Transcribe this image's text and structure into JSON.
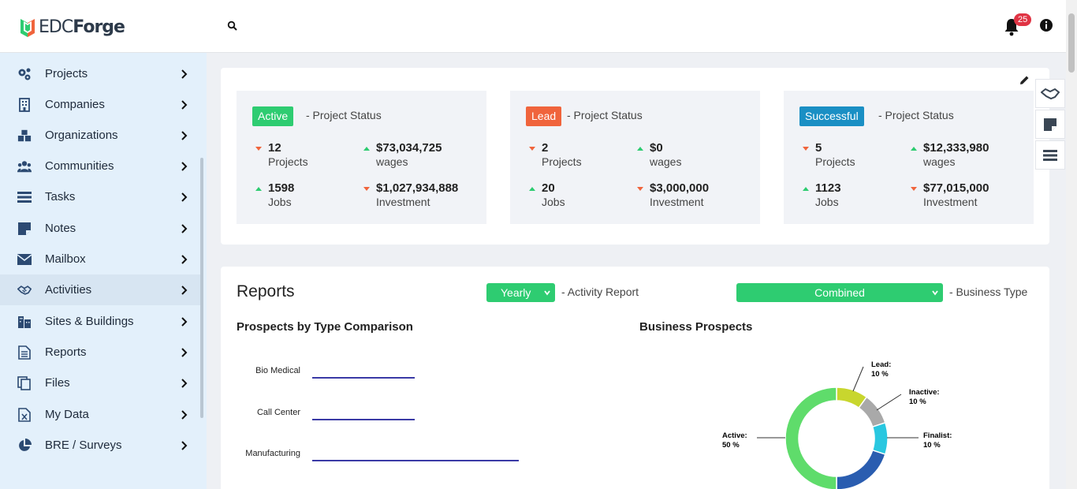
{
  "header": {
    "logo_text_light": "EDC",
    "logo_text_bold": "Forge",
    "notification_count": "25"
  },
  "sidebar": {
    "items": [
      {
        "label": "Projects",
        "icon": "gears-icon"
      },
      {
        "label": "Companies",
        "icon": "building-icon"
      },
      {
        "label": "Organizations",
        "icon": "cubes-icon"
      },
      {
        "label": "Communities",
        "icon": "users-icon"
      },
      {
        "label": "Tasks",
        "icon": "tasks-icon"
      },
      {
        "label": "Notes",
        "icon": "note-icon"
      },
      {
        "label": "Mailbox",
        "icon": "envelope-icon"
      },
      {
        "label": "Activities",
        "icon": "handshake-icon"
      },
      {
        "label": "Sites & Buildings",
        "icon": "city-icon"
      },
      {
        "label": "Reports",
        "icon": "file-text-icon"
      },
      {
        "label": "Files",
        "icon": "files-icon"
      },
      {
        "label": "My Data",
        "icon": "excel-file-icon"
      },
      {
        "label": "BRE / Surveys",
        "icon": "pie-icon"
      }
    ]
  },
  "status_cards": [
    {
      "status": "Active",
      "color": "#2ecc71",
      "suffix": "- Project Status",
      "projects": "12",
      "projects_label": "Projects",
      "projects_trend": "down",
      "wages": "$73,034,725",
      "wages_label": "wages",
      "wages_trend": "up",
      "jobs": "1598",
      "jobs_label": "Jobs",
      "jobs_trend": "up",
      "investment": "$1,027,934,888",
      "investment_label": "Investment",
      "investment_trend": "down"
    },
    {
      "status": "Lead",
      "color": "#f0643c",
      "suffix": "- Project Status",
      "projects": "2",
      "projects_label": "Projects",
      "projects_trend": "down",
      "wages": "$0",
      "wages_label": "wages",
      "wages_trend": "up",
      "jobs": "20",
      "jobs_label": "Jobs",
      "jobs_trend": "up",
      "investment": "$3,000,000",
      "investment_label": "Investment",
      "investment_trend": "down"
    },
    {
      "status": "Successful",
      "color": "#1a8fc4",
      "suffix": "- Project Status",
      "projects": "5",
      "projects_label": "Projects",
      "projects_trend": "down",
      "wages": "$12,333,980",
      "wages_label": "wages",
      "wages_trend": "up",
      "jobs": "1123",
      "jobs_label": "Jobs",
      "jobs_trend": "up",
      "investment": "$77,015,000",
      "investment_label": "Investment",
      "investment_trend": "down"
    }
  ],
  "reports": {
    "title": "Reports",
    "period_select": "Yearly",
    "period_label": "- Activity Report",
    "business_select": "Combined",
    "business_label": "- Business Type",
    "bar_chart_title": "Prospects by Type Comparison",
    "donut_title": "Business Prospects"
  },
  "chart_data": [
    {
      "type": "bar",
      "title": "Prospects by Type Comparison",
      "categories": [
        "Bio Medical",
        "Call Center",
        "Manufacturing"
      ],
      "values": [
        1,
        1,
        2
      ],
      "color": "#3a3aa6"
    },
    {
      "type": "pie",
      "title": "Business Prospects",
      "slices": [
        {
          "label": "Lead:",
          "value": 10,
          "value_text": "10 %",
          "color": "#c8d62e"
        },
        {
          "label": "Inactive:",
          "value": 10,
          "value_text": "10 %",
          "color": "#a9a9a9"
        },
        {
          "label": "Finalist:",
          "value": 10,
          "value_text": "10 %",
          "color": "#29c7e0"
        },
        {
          "label": "",
          "value": 20,
          "value_text": "",
          "color": "#2a5db0"
        },
        {
          "label": "Active:",
          "value": 50,
          "value_text": "50 %",
          "color": "#5fdc6b"
        }
      ]
    }
  ]
}
